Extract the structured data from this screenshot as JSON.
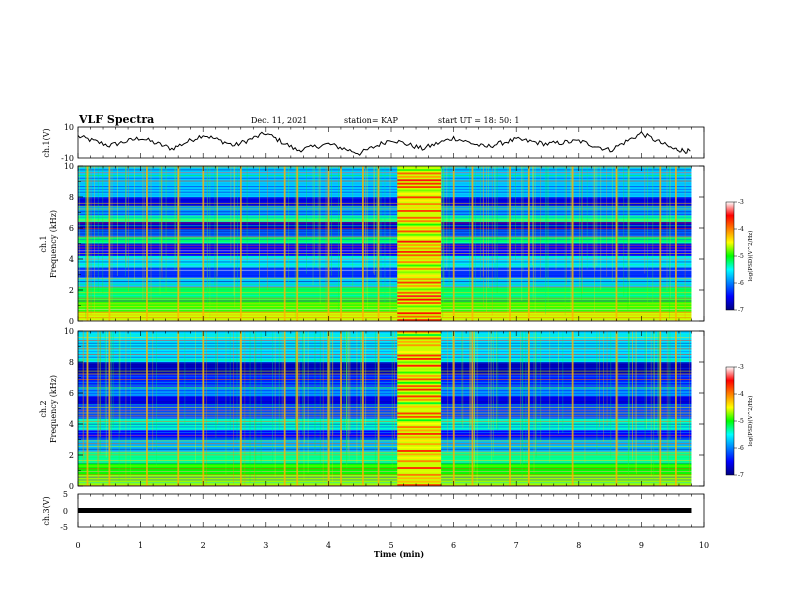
{
  "header": {
    "title": "VLF Spectra",
    "date": "Dec. 11, 2021",
    "station": "station= KAP",
    "start": "start  UT =   18: 50: 1"
  },
  "chart_data": [
    {
      "type": "line",
      "title": "",
      "ylabel": "ch.1(V)",
      "ylim": [
        -10,
        10
      ],
      "yticks": [
        "10",
        "-10"
      ],
      "x": [
        0,
        0.5,
        1,
        1.5,
        2,
        2.5,
        3,
        3.5,
        4,
        4.5,
        5,
        5.5,
        6,
        6.5,
        7,
        7.5,
        8,
        8.5,
        9,
        9.5,
        9.8
      ],
      "values": [
        4,
        -2,
        3,
        -4,
        5,
        -2,
        6,
        -5,
        -1,
        -7,
        2,
        -4,
        3,
        -3,
        2,
        -1,
        1,
        -5,
        6,
        -4,
        -6
      ]
    },
    {
      "type": "heatmap",
      "ylabel_line1": "ch.1",
      "ylabel_line2": "Frequency  (kHz)",
      "xlim": [
        0,
        10
      ],
      "ylim": [
        0,
        10
      ],
      "yticks": [
        "0",
        "2",
        "4",
        "6",
        "8",
        "10"
      ],
      "colorbar": {
        "label": "log(PSD)(V^2/Hz)",
        "ticks": [
          "-3",
          "-4",
          "-5",
          "-6",
          "-7"
        ],
        "range": [
          -7,
          -3
        ]
      },
      "bands_khz": [
        {
          "lo": 0.0,
          "hi": 0.6,
          "log_psd": -4.6
        },
        {
          "lo": 0.6,
          "hi": 1.4,
          "log_psd": -4.9
        },
        {
          "lo": 1.4,
          "hi": 2.2,
          "log_psd": -5.2
        },
        {
          "lo": 2.2,
          "hi": 2.8,
          "log_psd": -5.7
        },
        {
          "lo": 2.8,
          "hi": 3.5,
          "log_psd": -6.3
        },
        {
          "lo": 3.5,
          "hi": 4.2,
          "log_psd": -5.6
        },
        {
          "lo": 4.2,
          "hi": 5.0,
          "log_psd": -6.5
        },
        {
          "lo": 5.0,
          "hi": 5.4,
          "log_psd": -5.2
        },
        {
          "lo": 5.4,
          "hi": 5.9,
          "log_psd": -6.1
        },
        {
          "lo": 5.9,
          "hi": 6.4,
          "log_psd": -6.7
        },
        {
          "lo": 6.4,
          "hi": 6.8,
          "log_psd": -5.3
        },
        {
          "lo": 6.8,
          "hi": 7.4,
          "log_psd": -5.9
        },
        {
          "lo": 7.4,
          "hi": 8.0,
          "log_psd": -6.6
        },
        {
          "lo": 8.0,
          "hi": 10.0,
          "log_psd": -5.7
        }
      ],
      "burst": {
        "t_start_min": 5.1,
        "t_end_min": 5.8,
        "log_psd": -3.4
      },
      "impulsive_lines_min": [
        0.15,
        0.5,
        1.1,
        1.6,
        2.0,
        2.6,
        3.3,
        3.5,
        4.0,
        4.2,
        4.55,
        4.8,
        6.0,
        6.3,
        6.9,
        7.2,
        7.9,
        8.6,
        9.3,
        9.55
      ]
    },
    {
      "type": "heatmap",
      "ylabel_line1": "ch.2",
      "ylabel_line2": "Frequency  (kHz)",
      "xlim": [
        0,
        10
      ],
      "ylim": [
        0,
        10
      ],
      "yticks": [
        "0",
        "2",
        "4",
        "6",
        "8",
        "10"
      ],
      "colorbar": {
        "label": "log(PSD)(V^2/Hz)",
        "ticks": [
          "-3",
          "-4",
          "-5",
          "-6",
          "-7"
        ],
        "range": [
          -7,
          -3
        ]
      },
      "bands_khz": [
        {
          "lo": 0.0,
          "hi": 0.7,
          "log_psd": -4.7
        },
        {
          "lo": 0.7,
          "hi": 1.5,
          "log_psd": -5.0
        },
        {
          "lo": 1.5,
          "hi": 2.2,
          "log_psd": -5.3
        },
        {
          "lo": 2.2,
          "hi": 3.0,
          "log_psd": -5.8
        },
        {
          "lo": 3.0,
          "hi": 3.6,
          "log_psd": -6.5
        },
        {
          "lo": 3.6,
          "hi": 4.4,
          "log_psd": -5.4
        },
        {
          "lo": 4.4,
          "hi": 5.2,
          "log_psd": -6.2
        },
        {
          "lo": 5.2,
          "hi": 5.8,
          "log_psd": -6.6
        },
        {
          "lo": 5.8,
          "hi": 6.4,
          "log_psd": -5.9
        },
        {
          "lo": 6.4,
          "hi": 7.2,
          "log_psd": -6.4
        },
        {
          "lo": 7.2,
          "hi": 8.0,
          "log_psd": -6.8
        },
        {
          "lo": 8.0,
          "hi": 10.0,
          "log_psd": -5.6
        }
      ],
      "burst": {
        "t_start_min": 5.1,
        "t_end_min": 5.8,
        "log_psd": -3.5
      },
      "impulsive_lines_min": [
        0.15,
        0.5,
        1.1,
        1.6,
        2.0,
        2.6,
        3.3,
        3.5,
        4.0,
        4.2,
        4.55,
        4.8,
        6.0,
        6.3,
        6.9,
        7.2,
        7.9,
        8.6,
        9.3,
        9.55
      ]
    },
    {
      "type": "line",
      "ylabel": "ch.3(V)",
      "ylim": [
        -5,
        5
      ],
      "yticks": [
        "5",
        "0",
        "-5"
      ],
      "x": [
        0,
        9.8
      ],
      "values": [
        0,
        0
      ]
    }
  ],
  "xaxis": {
    "label": "Time  (min)",
    "ticks": [
      "0",
      "1",
      "2",
      "3",
      "4",
      "5",
      "6",
      "7",
      "8",
      "9",
      "10"
    ],
    "xlim": [
      0,
      10
    ]
  }
}
